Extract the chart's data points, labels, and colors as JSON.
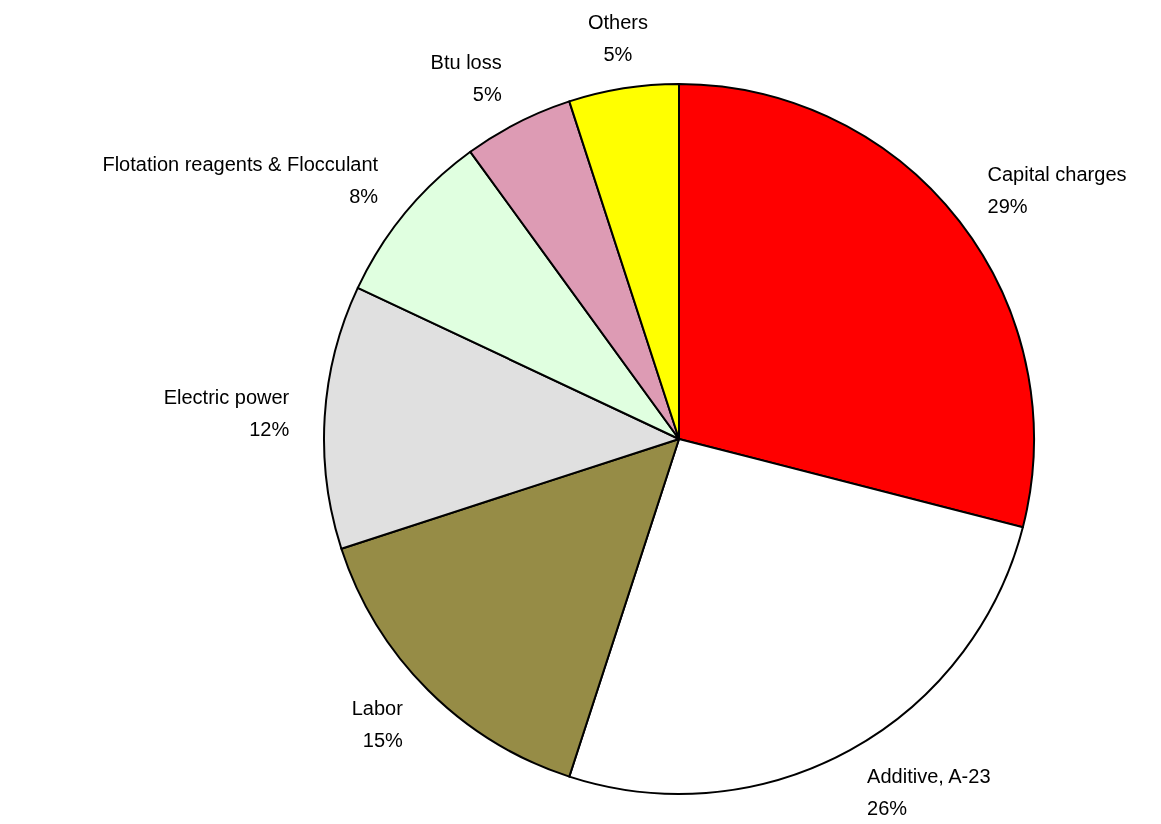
{
  "chart_data": {
    "type": "pie",
    "categories": [
      "Capital charges",
      "Additive, A-23",
      "Labor",
      "Electric power",
      "Flotation reagents & Flocculant",
      "Btu loss",
      "Others"
    ],
    "values": [
      29,
      26,
      15,
      12,
      8,
      5,
      5
    ],
    "value_labels": [
      "29%",
      "26%",
      "15%",
      "12%",
      "8%",
      "5%",
      "5%"
    ],
    "colors": [
      "#ff0000",
      "#ffffff",
      "#968c46",
      "#e0e0e0",
      "#e0ffe0",
      "#dd9bb4",
      "#ffff00"
    ]
  }
}
